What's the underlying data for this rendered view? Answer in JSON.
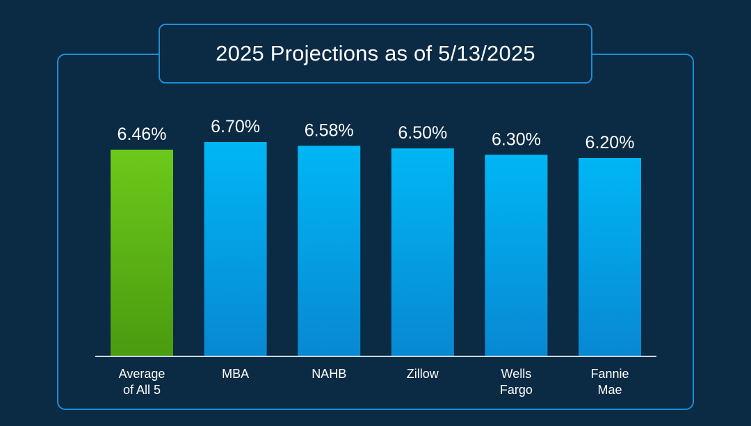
{
  "title": "2025 Projections as of 5/13/2025",
  "colors": {
    "background": "#0b2a44",
    "frame": "#1a8fd8",
    "highlight_top": "#6cc91a",
    "highlight_bottom": "#4a9b10",
    "bar_top": "#00b6f5",
    "bar_bottom": "#0888d2",
    "axis": "#cfd8e0",
    "text": "#ffffff"
  },
  "chart_data": {
    "type": "bar",
    "title": "2025 Projections as of 5/13/2025",
    "categories": [
      [
        "Average",
        "of All 5"
      ],
      [
        "MBA"
      ],
      [
        "NAHB"
      ],
      [
        "Zillow"
      ],
      [
        "Wells",
        "Fargo"
      ],
      [
        "Fannie",
        "Mae"
      ]
    ],
    "values": [
      6.46,
      6.7,
      6.58,
      6.5,
      6.3,
      6.2
    ],
    "value_labels": [
      "6.46%",
      "6.70%",
      "6.58%",
      "6.50%",
      "6.30%",
      "6.20%"
    ],
    "highlight_index": 0,
    "xlabel": "",
    "ylabel": "",
    "grid": false,
    "legend": "none"
  }
}
